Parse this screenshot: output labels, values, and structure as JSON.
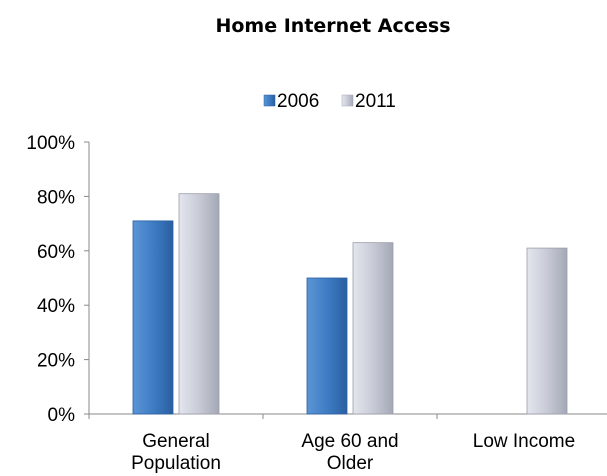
{
  "chart_data": {
    "type": "bar",
    "title": "Home Internet Access",
    "categories": [
      [
        "General",
        "Population"
      ],
      [
        "Age 60 and",
        "Older"
      ],
      [
        "Low Income"
      ]
    ],
    "series": [
      {
        "name": "2006",
        "values": [
          71,
          50,
          null
        ],
        "color": "#3f7cc4"
      },
      {
        "name": "2011",
        "values": [
          81,
          63,
          61
        ],
        "color": "#c8cbd6"
      }
    ],
    "y_ticks": [
      "0%",
      "20%",
      "40%",
      "60%",
      "80%",
      "100%"
    ],
    "ylim": [
      0,
      100
    ],
    "y_unit": "%",
    "legend_position": "top",
    "grid": false
  }
}
